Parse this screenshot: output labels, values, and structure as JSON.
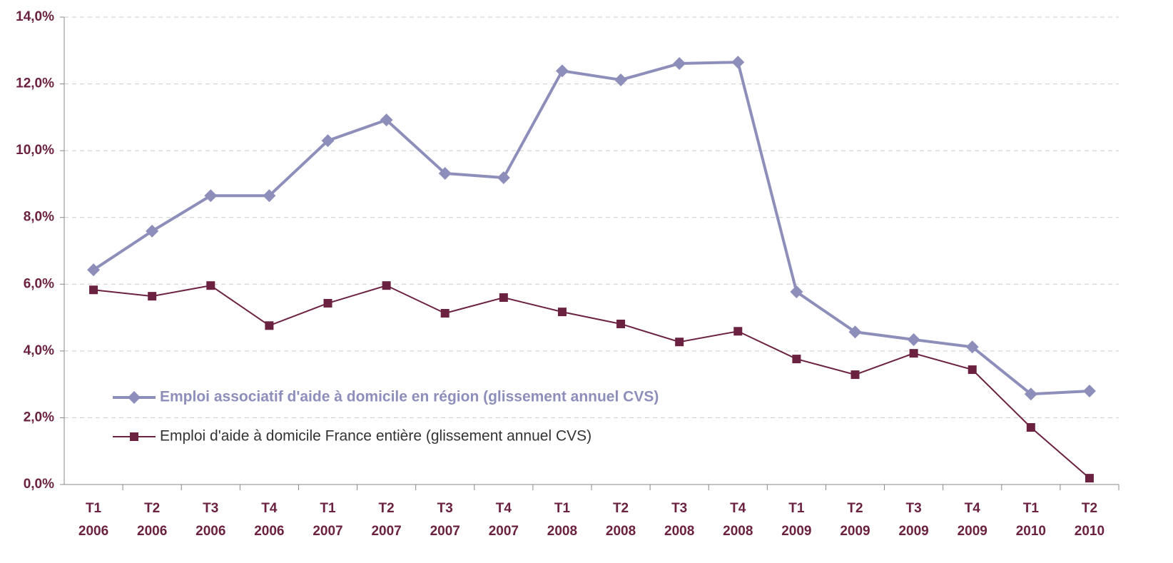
{
  "chart_data": {
    "type": "line",
    "categories": [
      [
        "T1",
        "2006"
      ],
      [
        "T2",
        "2006"
      ],
      [
        "T3",
        "2006"
      ],
      [
        "T4",
        "2006"
      ],
      [
        "T1",
        "2007"
      ],
      [
        "T2",
        "2007"
      ],
      [
        "T3",
        "2007"
      ],
      [
        "T4",
        "2007"
      ],
      [
        "T1",
        "2008"
      ],
      [
        "T2",
        "2008"
      ],
      [
        "T3",
        "2008"
      ],
      [
        "T4",
        "2008"
      ],
      [
        "T1",
        "2009"
      ],
      [
        "T2",
        "2009"
      ],
      [
        "T3",
        "2009"
      ],
      [
        "T4",
        "2009"
      ],
      [
        "T1",
        "2010"
      ],
      [
        "T2",
        "2010"
      ]
    ],
    "series": [
      {
        "name": "Emploi associatif d'aide à domicile en région (glissement annuel CVS)",
        "color": "#8e8ebb",
        "marker": "diamond",
        "values": [
          6.43,
          7.59,
          8.65,
          8.65,
          10.3,
          10.92,
          9.32,
          9.19,
          12.39,
          12.12,
          12.61,
          12.65,
          5.77,
          4.57,
          4.34,
          4.12,
          2.71,
          2.8
        ]
      },
      {
        "name": "Emploi d'aide à domicile France entière (glissement annuel CVS)",
        "color": "#6b2240",
        "marker": "square",
        "values": [
          5.83,
          5.64,
          5.96,
          4.76,
          5.43,
          5.96,
          5.13,
          5.6,
          5.17,
          4.81,
          4.27,
          4.59,
          3.76,
          3.29,
          3.93,
          3.44,
          1.71,
          0.19
        ]
      }
    ],
    "ylim": [
      0,
      14
    ],
    "yticks": [
      {
        "value": 0,
        "label": "0,0%"
      },
      {
        "value": 2,
        "label": "2,0%"
      },
      {
        "value": 4,
        "label": "4,0%"
      },
      {
        "value": 6,
        "label": "6,0%"
      },
      {
        "value": 8,
        "label": "8,0%"
      },
      {
        "value": 10,
        "label": "10,0%"
      },
      {
        "value": 12,
        "label": "12,0%"
      },
      {
        "value": 14,
        "label": "14,0%"
      }
    ],
    "grid": true
  }
}
